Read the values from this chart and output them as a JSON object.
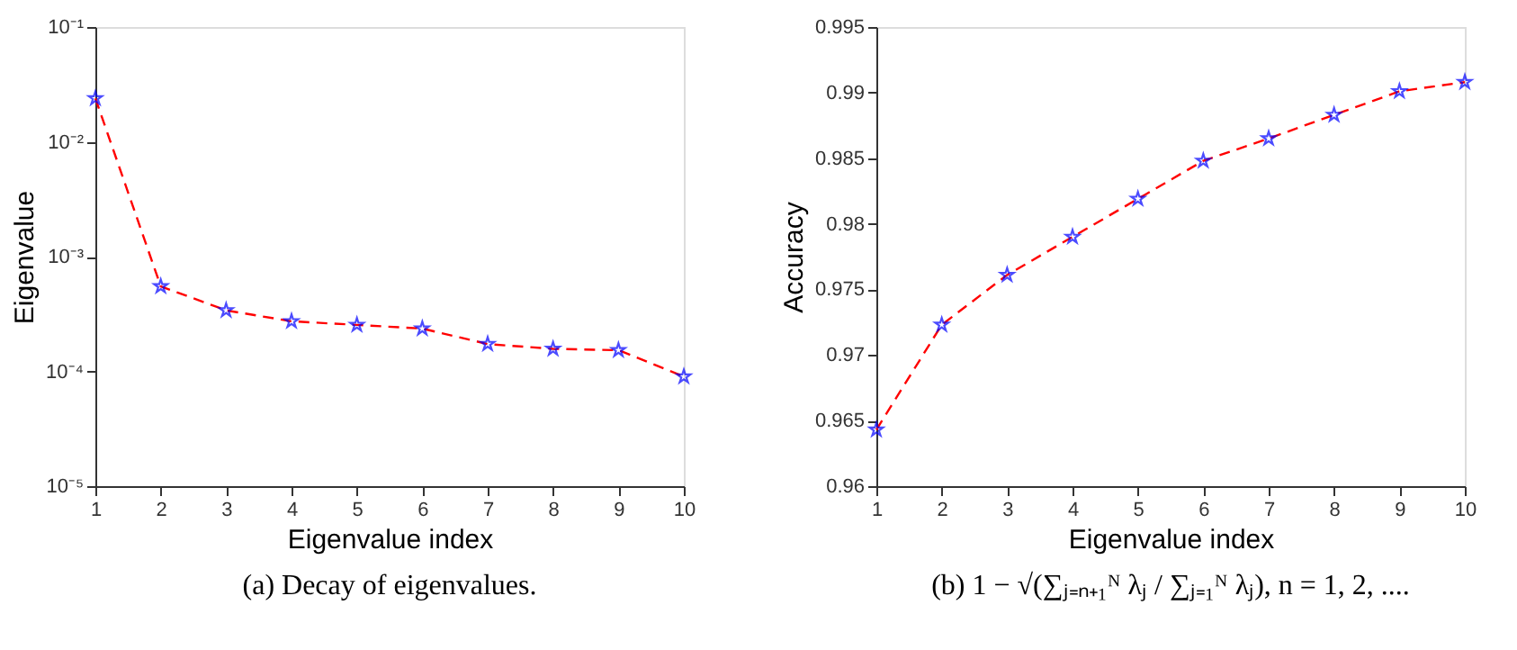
{
  "chart_data": [
    {
      "type": "line",
      "title": "(a) Decay of eigenvalues.",
      "xlabel": "Eigenvalue index",
      "ylabel": "Eigenvalue",
      "log": "y",
      "grid": false,
      "x": [
        1,
        2,
        3,
        4,
        5,
        6,
        7,
        8,
        9,
        10
      ],
      "xlim": [
        1,
        10
      ],
      "xticks": [
        1,
        2,
        3,
        4,
        5,
        6,
        7,
        8,
        9,
        10
      ],
      "ylim": [
        1e-05,
        0.1
      ],
      "yticks": [
        {
          "value": 1e-05,
          "label": "10⁻⁵"
        },
        {
          "value": 0.0001,
          "label": "10⁻⁴"
        },
        {
          "value": 0.001,
          "label": "10⁻³"
        },
        {
          "value": 0.01,
          "label": "10⁻²"
        },
        {
          "value": 0.1,
          "label": "10⁻¹"
        }
      ],
      "series": [
        {
          "color": "#ff0000",
          "line_style": "dashed",
          "marker": "none",
          "values": [
            0.0239,
            0.00055,
            0.00034,
            0.000273,
            0.000254,
            0.000236,
            0.000173,
            0.000157,
            0.000153,
            9e-05
          ]
        },
        {
          "type": "scatter",
          "color": "#0000ff",
          "marker": "star",
          "values": [
            0.0239,
            0.00055,
            0.00034,
            0.000273,
            0.000254,
            0.000236,
            0.000173,
            0.000157,
            0.000153,
            9e-05
          ]
        }
      ]
    },
    {
      "type": "line",
      "title": "(b) 1 − √(∑ⱼ₌ₙ₊₁ᴺ λⱼ / ∑ⱼ₌₁ᴺ λⱼ), n = 1, 2, ....",
      "xlabel": "Eigenvalue index",
      "ylabel": "Accuracy",
      "grid": false,
      "x": [
        1,
        2,
        3,
        4,
        5,
        6,
        7,
        8,
        9,
        10
      ],
      "xlim": [
        1,
        10
      ],
      "xticks": [
        1,
        2,
        3,
        4,
        5,
        6,
        7,
        8,
        9,
        10
      ],
      "ylim": [
        0.96,
        0.995
      ],
      "yticks": [
        0.96,
        0.965,
        0.97,
        0.975,
        0.98,
        0.985,
        0.99,
        0.995
      ],
      "series": [
        {
          "color": "#ff0000",
          "line_style": "dashed",
          "marker": "none",
          "values": [
            0.9643,
            0.9723,
            0.9761,
            0.979,
            0.9819,
            0.9848,
            0.9865,
            0.9883,
            0.9901,
            0.9908
          ]
        },
        {
          "type": "scatter",
          "color": "#0000ff",
          "marker": "star",
          "values": [
            0.9643,
            0.9723,
            0.9761,
            0.979,
            0.9819,
            0.9848,
            0.9865,
            0.9883,
            0.9901,
            0.9908
          ]
        }
      ]
    }
  ]
}
